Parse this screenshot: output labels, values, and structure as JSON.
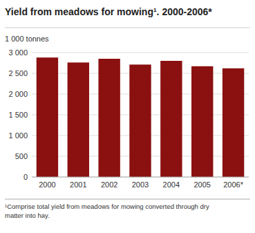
{
  "chart_data": {
    "type": "bar",
    "title": "Yield from meadows for mowing¹. 2000-2006*",
    "ylabel": "1 000 tonnes",
    "footnote": "¹Comprise total yield from meadows for mowing converted through dry\nmatter into hay.",
    "categories": [
      "2000",
      "2001",
      "2002",
      "2003",
      "2004",
      "2005",
      "2006*"
    ],
    "values": [
      2880,
      2760,
      2850,
      2710,
      2800,
      2670,
      2620
    ],
    "color": "#8B1010",
    "ylim": [
      0,
      3000
    ],
    "yticks": [
      0,
      500,
      {
        "value": 1000,
        "label": "1 000"
      },
      {
        "value": 1500,
        "label": "1 500"
      },
      {
        "value": 2000,
        "label": "2 000"
      },
      {
        "value": 2500,
        "label": "2 500"
      },
      {
        "value": 3000,
        "label": "3 000"
      }
    ],
    "grid": true
  }
}
